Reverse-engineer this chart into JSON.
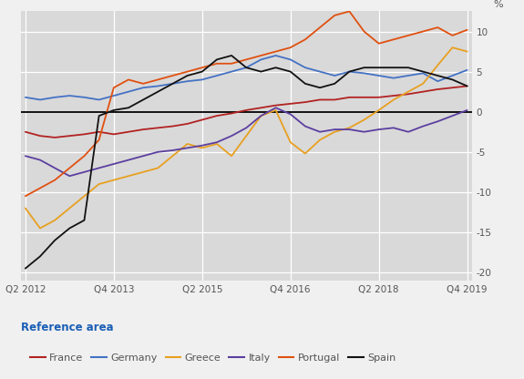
{
  "ylabel": "%",
  "xlabel_label": "Reference area",
  "plot_bg_color": "#d9d9d9",
  "fig_bg_color": "#f0f0f0",
  "grid_color": "#ffffff",
  "zero_line_color": "#000000",
  "x_tick_labels": [
    "Q2 2012",
    "Q4 2013",
    "Q2 2015",
    "Q4 2016",
    "Q2 2018",
    "Q4 2019"
  ],
  "x_tick_positions": [
    0,
    6,
    12,
    18,
    24,
    30
  ],
  "ylim": [
    -21,
    12.5
  ],
  "yticks": [
    -20,
    -15,
    -10,
    -5,
    0,
    5,
    10
  ],
  "series": {
    "France": {
      "color": "#b22222",
      "values": [
        -2.5,
        -3.0,
        -3.2,
        -3.0,
        -2.8,
        -2.5,
        -2.8,
        -2.5,
        -2.2,
        -2.0,
        -1.8,
        -1.5,
        -1.0,
        -0.5,
        -0.2,
        0.2,
        0.5,
        0.8,
        1.0,
        1.2,
        1.5,
        1.5,
        1.8,
        1.8,
        1.8,
        2.0,
        2.2,
        2.5,
        2.8,
        3.0,
        3.2
      ]
    },
    "Germany": {
      "color": "#4472c4",
      "values": [
        1.8,
        1.5,
        1.8,
        2.0,
        1.8,
        1.5,
        2.0,
        2.5,
        3.0,
        3.2,
        3.5,
        3.8,
        4.0,
        4.5,
        5.0,
        5.5,
        6.5,
        7.0,
        6.5,
        5.5,
        5.0,
        4.5,
        5.0,
        4.8,
        4.5,
        4.2,
        4.5,
        4.8,
        3.8,
        4.5,
        5.2
      ]
    },
    "Greece": {
      "color": "#e8a020",
      "values": [
        -12.0,
        -14.5,
        -13.5,
        -12.0,
        -10.5,
        -9.0,
        -8.5,
        -8.0,
        -7.5,
        -7.0,
        -5.5,
        -4.0,
        -4.5,
        -4.0,
        -5.5,
        -3.0,
        -0.5,
        0.2,
        -3.8,
        -5.2,
        -3.5,
        -2.5,
        -2.0,
        -1.0,
        0.2,
        1.5,
        2.5,
        3.5,
        5.8,
        8.0,
        7.5
      ]
    },
    "Italy": {
      "color": "#5b3fa0",
      "values": [
        -5.5,
        -6.0,
        -7.0,
        -8.0,
        -7.5,
        -7.0,
        -6.5,
        -6.0,
        -5.5,
        -5.0,
        -4.8,
        -4.5,
        -4.2,
        -3.8,
        -3.0,
        -2.0,
        -0.5,
        0.5,
        -0.3,
        -1.8,
        -2.5,
        -2.2,
        -2.2,
        -2.5,
        -2.2,
        -2.0,
        -2.5,
        -1.8,
        -1.2,
        -0.5,
        0.2
      ]
    },
    "Portugal": {
      "color": "#e05010",
      "values": [
        -10.5,
        -9.5,
        -8.5,
        -7.0,
        -5.5,
        -3.5,
        3.0,
        4.0,
        3.5,
        4.0,
        4.5,
        5.0,
        5.5,
        6.0,
        6.0,
        6.5,
        7.0,
        7.5,
        8.0,
        9.0,
        10.5,
        12.0,
        12.5,
        10.0,
        8.5,
        9.0,
        9.5,
        10.0,
        10.5,
        9.5,
        10.2
      ]
    },
    "Spain": {
      "color": "#111111",
      "values": [
        -19.5,
        -18.0,
        -16.0,
        -14.5,
        -13.5,
        -0.5,
        0.2,
        0.5,
        1.5,
        2.5,
        3.5,
        4.5,
        5.0,
        6.5,
        7.0,
        5.5,
        5.0,
        5.5,
        5.0,
        3.5,
        3.0,
        3.5,
        5.0,
        5.5,
        5.5,
        5.5,
        5.5,
        5.0,
        4.5,
        4.0,
        3.2
      ]
    }
  }
}
